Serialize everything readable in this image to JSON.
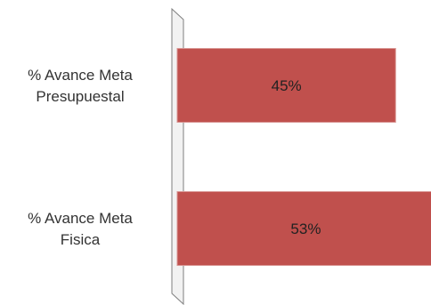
{
  "chart_data": {
    "type": "bar",
    "orientation": "horizontal",
    "categories": [
      [
        "% Avance Meta",
        "Presupuestal"
      ],
      [
        "% Avance Meta",
        "Fisica"
      ]
    ],
    "values": [
      45,
      53
    ],
    "data_labels": [
      "45%",
      "53%"
    ],
    "bar_color": "#c0504d",
    "grid": false,
    "legend": "none",
    "title": ""
  }
}
